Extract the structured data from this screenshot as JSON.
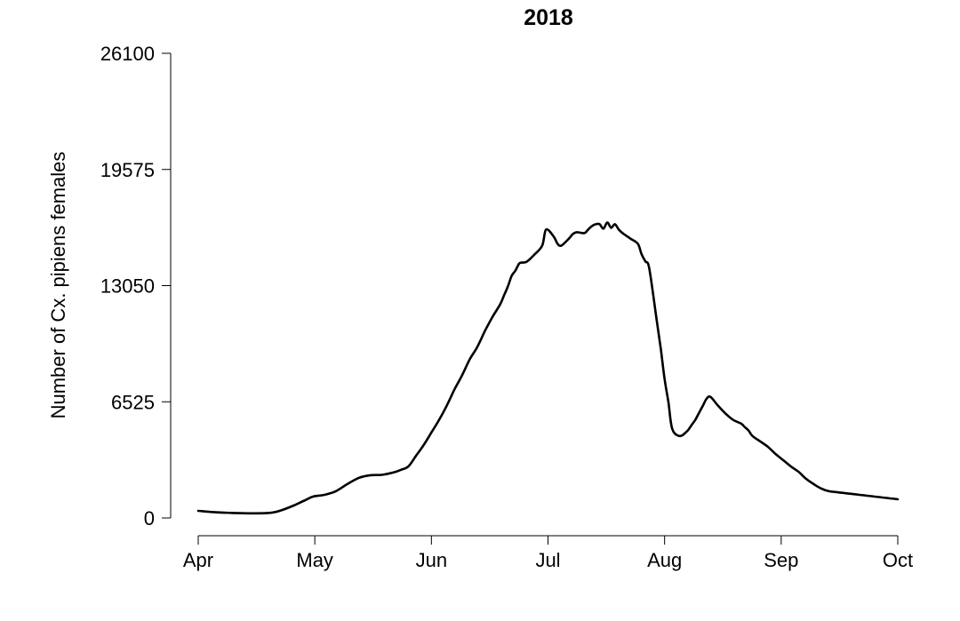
{
  "chart_data": {
    "type": "line",
    "title": "2018",
    "xlabel": "",
    "ylabel": "Number of Cx. pipiens females",
    "x_tick_labels": [
      "Apr",
      "May",
      "Jun",
      "Jul",
      "Aug",
      "Sep",
      "Oct"
    ],
    "y_tick_labels": [
      "0",
      "6525",
      "13050",
      "19575",
      "26100"
    ],
    "ylim": [
      0,
      26100
    ],
    "xlim": [
      "2018-04-01",
      "2018-10-01"
    ],
    "grid": false,
    "legend": "none",
    "line_color": "#000000",
    "series": [
      {
        "x": [
          "2018-04-01",
          "2018-04-05",
          "2018-04-10",
          "2018-04-15",
          "2018-04-20",
          "2018-04-23",
          "2018-04-26",
          "2018-04-29",
          "2018-05-01",
          "2018-05-04",
          "2018-05-07",
          "2018-05-10",
          "2018-05-13",
          "2018-05-16",
          "2018-05-19",
          "2018-05-22",
          "2018-05-24",
          "2018-05-26",
          "2018-05-28",
          "2018-05-30",
          "2018-06-01",
          "2018-06-03",
          "2018-06-05",
          "2018-06-07",
          "2018-06-09",
          "2018-06-11",
          "2018-06-13",
          "2018-06-15",
          "2018-06-17",
          "2018-06-19",
          "2018-06-20",
          "2018-06-21",
          "2018-06-22",
          "2018-06-23",
          "2018-06-24",
          "2018-06-25",
          "2018-06-26",
          "2018-06-28",
          "2018-06-30",
          "2018-07-01",
          "2018-07-03",
          "2018-07-04",
          "2018-07-05",
          "2018-07-07",
          "2018-07-08",
          "2018-07-09",
          "2018-07-11",
          "2018-07-12",
          "2018-07-13",
          "2018-07-14",
          "2018-07-15",
          "2018-07-16",
          "2018-07-17",
          "2018-07-18",
          "2018-07-19",
          "2018-07-20",
          "2018-07-21",
          "2018-07-23",
          "2018-07-25",
          "2018-07-26",
          "2018-07-27",
          "2018-07-28",
          "2018-07-30",
          "2018-07-31",
          "2018-08-01",
          "2018-08-02",
          "2018-08-03",
          "2018-08-05",
          "2018-08-07",
          "2018-08-08",
          "2018-08-09",
          "2018-08-10",
          "2018-08-11",
          "2018-08-12",
          "2018-08-13",
          "2018-08-15",
          "2018-08-17",
          "2018-08-19",
          "2018-08-21",
          "2018-08-22",
          "2018-08-23",
          "2018-08-24",
          "2018-08-26",
          "2018-08-28",
          "2018-08-30",
          "2018-09-01",
          "2018-09-03",
          "2018-09-05",
          "2018-09-07",
          "2018-09-09",
          "2018-09-11",
          "2018-09-13",
          "2018-09-15",
          "2018-09-17",
          "2018-09-19",
          "2018-09-21",
          "2018-09-23",
          "2018-09-25",
          "2018-09-27",
          "2018-09-29",
          "2018-10-01"
        ],
        "y": [
          400,
          330,
          280,
          260,
          290,
          450,
          700,
          1000,
          1200,
          1300,
          1500,
          1900,
          2250,
          2400,
          2420,
          2550,
          2700,
          2900,
          3500,
          4100,
          4800,
          5500,
          6300,
          7200,
          8000,
          8900,
          9600,
          10500,
          11300,
          12000,
          12500,
          13000,
          13600,
          13900,
          14300,
          14350,
          14400,
          14800,
          15300,
          16200,
          15800,
          15400,
          15300,
          15700,
          15950,
          16050,
          16000,
          16200,
          16400,
          16500,
          16500,
          16250,
          16600,
          16300,
          16500,
          16200,
          16000,
          15700,
          15400,
          14800,
          14400,
          14000,
          11000,
          9500,
          7800,
          6500,
          5000,
          4600,
          4900,
          5200,
          5500,
          5900,
          6300,
          6700,
          6800,
          6300,
          5850,
          5500,
          5300,
          5100,
          4900,
          4600,
          4300,
          4000,
          3600,
          3250,
          2900,
          2600,
          2200,
          1900,
          1650,
          1500,
          1450,
          1400,
          1350,
          1300,
          1250,
          1200,
          1150,
          1100,
          1050
        ]
      }
    ]
  }
}
